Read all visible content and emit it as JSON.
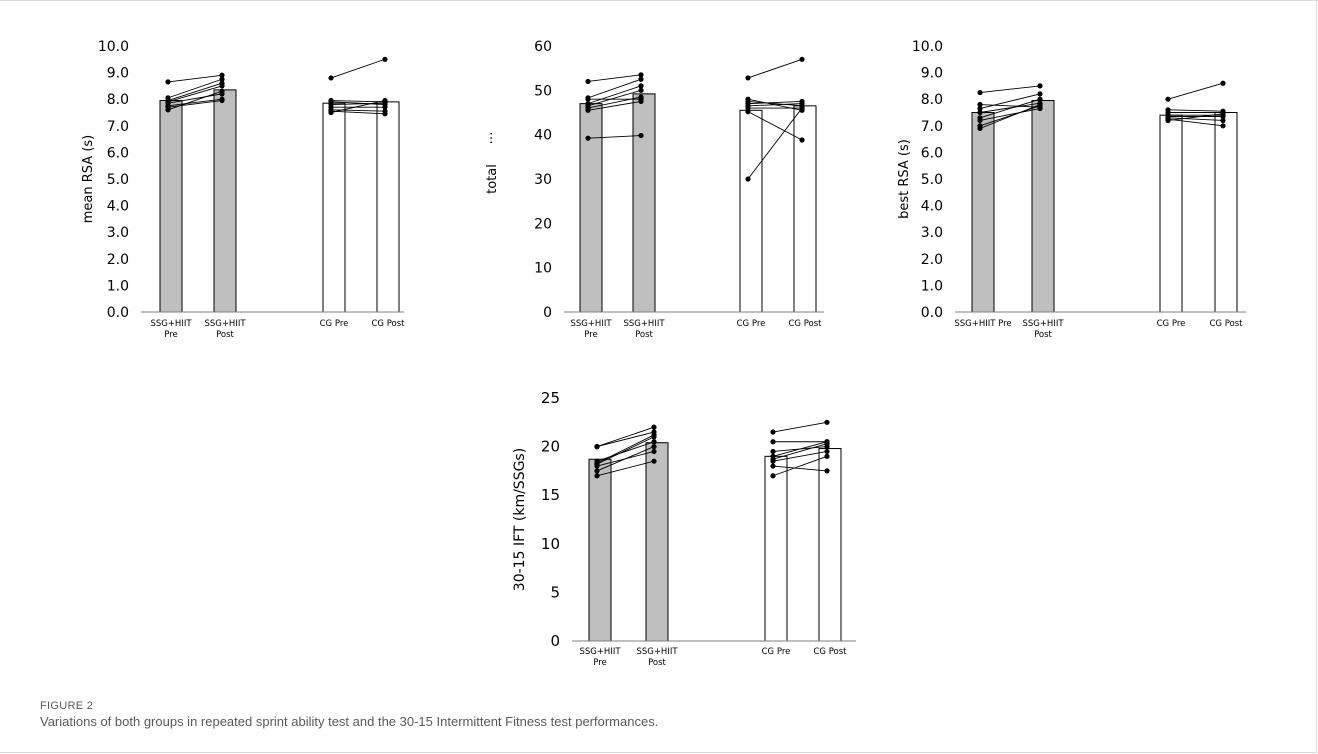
{
  "caption": {
    "label": "FIGURE 2",
    "text": "Variations of both groups in repeated sprint ability test and the 30-15 Intermittent Fitness test performances."
  },
  "colors": {
    "intervention_bar": "#bfbfbf",
    "control_bar": "#ffffff",
    "stroke": "#000000"
  },
  "chart_data": [
    {
      "type": "bar",
      "ylabel": "mean RSA (s)",
      "ylim": [
        0,
        10
      ],
      "yticks": [
        "0.0",
        "1.0",
        "2.0",
        "3.0",
        "4.0",
        "5.0",
        "6.0",
        "7.0",
        "8.0",
        "9.0",
        "10.0"
      ],
      "categories": [
        [
          "SSG+HIIT",
          "Pre"
        ],
        [
          "SSG+HIIT",
          "Post"
        ],
        [
          "CG Pre"
        ],
        [
          "CG Post"
        ]
      ],
      "values": [
        7.95,
        8.35,
        7.85,
        7.9
      ],
      "groups": [
        {
          "name": "SSG+HIIT",
          "individual_pre": [
            8.65,
            8.05,
            7.95,
            7.9,
            7.85,
            7.75,
            7.7,
            7.6
          ],
          "individual_post": [
            8.9,
            8.75,
            8.6,
            8.5,
            8.2,
            8.0,
            7.95,
            8.3
          ]
        },
        {
          "name": "CG",
          "individual_pre": [
            8.8,
            7.95,
            7.9,
            7.8,
            7.7,
            7.6,
            7.55,
            7.5
          ],
          "individual_post": [
            9.5,
            7.9,
            7.8,
            7.85,
            7.7,
            7.55,
            7.45,
            7.95
          ]
        }
      ]
    },
    {
      "type": "bar",
      "ylabel": "total",
      "ylabel_extra": "…",
      "ylim": [
        0,
        60
      ],
      "yticks": [
        "0",
        "10",
        "20",
        "30",
        "40",
        "50",
        "60"
      ],
      "categories": [
        [
          "SSG+HIIT",
          "Pre"
        ],
        [
          "SSG+HIIT",
          "Post"
        ],
        [
          "CG Pre"
        ],
        [
          "CG Post"
        ]
      ],
      "values": [
        47,
        49.2,
        45.5,
        46.5
      ],
      "groups": [
        {
          "name": "SSG+HIIT",
          "individual_pre": [
            52,
            48.3,
            48,
            47,
            46.5,
            46,
            45.5,
            39.2
          ],
          "individual_post": [
            53.5,
            52.5,
            48,
            51,
            50,
            48.5,
            47.5,
            39.8
          ]
        },
        {
          "name": "CG",
          "individual_pre": [
            52.8,
            48,
            47.5,
            47,
            46.5,
            46,
            45.2,
            30
          ],
          "individual_post": [
            57,
            45.5,
            46.5,
            47.5,
            47,
            46,
            38.8,
            46
          ]
        }
      ]
    },
    {
      "type": "bar",
      "ylabel": "best RSA (s)",
      "ylim": [
        0,
        10
      ],
      "yticks": [
        "0.0",
        "1.0",
        "2.0",
        "3.0",
        "4.0",
        "5.0",
        "6.0",
        "7.0",
        "8.0",
        "9.0",
        "10.0"
      ],
      "categories": [
        [
          "SSG+HIIT Pre"
        ],
        [
          "SSG+HIIT",
          "Post"
        ],
        [
          "CG Pre"
        ],
        [
          "CG Post"
        ]
      ],
      "values": [
        7.5,
        7.95,
        7.4,
        7.5
      ],
      "groups": [
        {
          "name": "SSG+HIIT",
          "individual_pre": [
            8.25,
            7.8,
            7.65,
            7.5,
            7.3,
            7.2,
            7.0,
            6.9
          ],
          "individual_post": [
            8.5,
            7.7,
            8.2,
            7.85,
            8.0,
            7.65,
            7.75,
            7.8
          ]
        },
        {
          "name": "CG",
          "individual_pre": [
            8.0,
            7.6,
            7.5,
            7.4,
            7.35,
            7.3,
            7.25,
            7.2
          ],
          "individual_post": [
            8.6,
            7.55,
            7.5,
            7.4,
            7.35,
            7.2,
            7.0,
            7.45
          ]
        }
      ]
    },
    {
      "type": "bar",
      "ylabel": "30-15 IFT (km/SSGs)",
      "ylim": [
        0,
        25
      ],
      "yticks": [
        "0",
        "5",
        "10",
        "15",
        "20",
        "25"
      ],
      "categories": [
        [
          "SSG+HIIT",
          "Pre"
        ],
        [
          "SSG+HIIT",
          "Post"
        ],
        [
          "CG Pre"
        ],
        [
          "CG Post"
        ]
      ],
      "values": [
        18.7,
        20.4,
        19.0,
        19.8
      ],
      "groups": [
        {
          "name": "SSG+HIIT",
          "individual_pre": [
            20.0,
            20.0,
            18.5,
            18.2,
            18.0,
            17.5,
            17.0,
            18.3
          ],
          "individual_post": [
            22.0,
            21.5,
            20.5,
            21.0,
            19.5,
            20.0,
            18.5,
            21.2
          ]
        },
        {
          "name": "CG",
          "individual_pre": [
            21.5,
            20.5,
            19.5,
            19.0,
            18.5,
            18.0,
            17.0,
            18.7
          ],
          "individual_post": [
            22.5,
            20.5,
            20.0,
            20.5,
            19.5,
            17.5,
            19.0,
            20.3
          ]
        }
      ]
    }
  ]
}
